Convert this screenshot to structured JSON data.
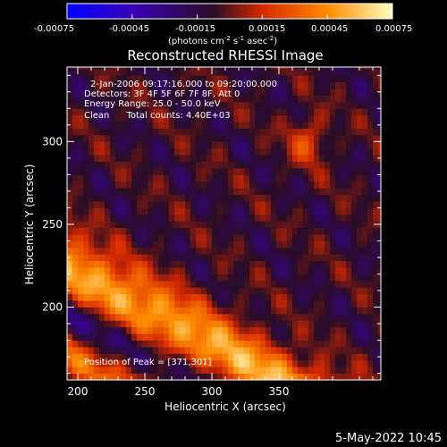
{
  "chart_data": {
    "type": "heatmap",
    "title": "Reconstructed RHESSI Image",
    "xlabel": "Heliocentric X (arcsec)",
    "ylabel": "Heliocentric Y (arcsec)",
    "xlim": [
      192,
      426
    ],
    "ylim": [
      156,
      345
    ],
    "xticks": [
      200,
      250,
      300,
      350
    ],
    "yticks": [
      200,
      250,
      300
    ],
    "colorbar": {
      "range": [
        -0.00075,
        0.00075
      ],
      "ticks": [
        "-0.00075",
        "-0.00045",
        "-0.00015",
        "0.00015",
        "0.00045",
        "0.00075"
      ],
      "units_main": "(photons cm",
      "units_sup1": "-2",
      "units_mid": " s",
      "units_sup2": "-1",
      "units_end": " asec",
      "units_sup3": "-2",
      "units_close": ")",
      "colormap": [
        "#0000ff",
        "#3a00b8",
        "#2a0d24",
        "#d62800",
        "#ff8c00",
        "#ffffc0"
      ]
    },
    "annotations": [
      "2-Jan-2006 09:17:16.000 to 09:20:00.000",
      "Detectors: 3F 4F 5F 6F 7F 8F, Att 0",
      "Energy Range: 25.0 - 50.0 keV",
      "Clean      Total counts: 4.40E+03"
    ],
    "peak_label": "Position of Peak = [371,301]",
    "peak": [
      371,
      301
    ],
    "bands": [
      {
        "value": 0.00062,
        "offset": 310,
        "width": 16
      },
      {
        "value": 0.0004,
        "offset": 258,
        "width": 15
      },
      {
        "value": 0.00055,
        "offset": 210,
        "width": 16
      },
      {
        "value": -0.0004,
        "offset": 285,
        "width": 10
      },
      {
        "value": -0.00055,
        "offset": 233,
        "width": 10
      },
      {
        "value": -0.0003,
        "offset": 185,
        "width": 9
      }
    ],
    "slope": -0.45,
    "timestamp": "5-May-2022 10:45"
  }
}
